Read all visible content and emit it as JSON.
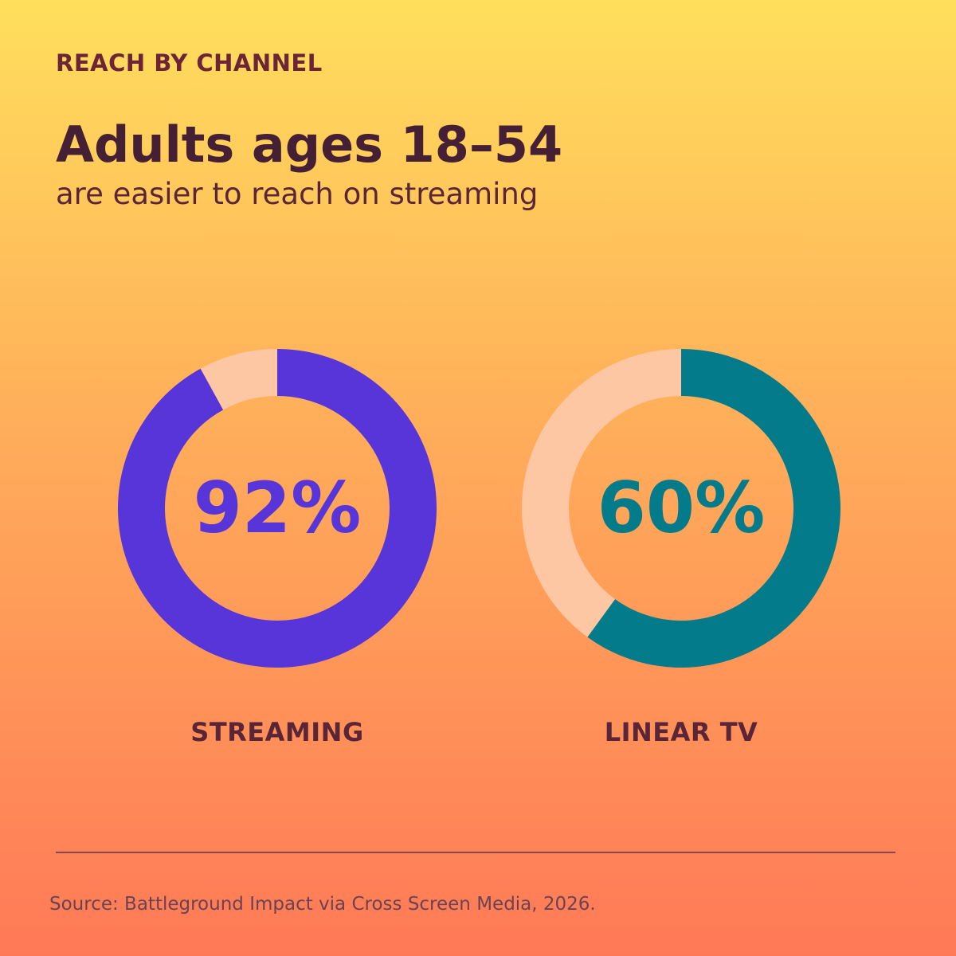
{
  "header": {
    "eyebrow": "REACH BY CHANNEL",
    "title": "Adults ages 18–54",
    "subtitle": "are easier to reach on streaming"
  },
  "colors": {
    "remainder": "#FDC7A4",
    "label_text": "#5A2637"
  },
  "chart_data": {
    "type": "pie",
    "unit": "%",
    "series": [
      {
        "name": "STREAMING",
        "value": 92,
        "display": "92%",
        "color": "#5835D8"
      },
      {
        "name": "LINEAR TV",
        "value": 60,
        "display": "60%",
        "color": "#037B8A"
      }
    ]
  },
  "footer": {
    "source": "Source: Battleground Impact via Cross Screen Media, 2026."
  }
}
